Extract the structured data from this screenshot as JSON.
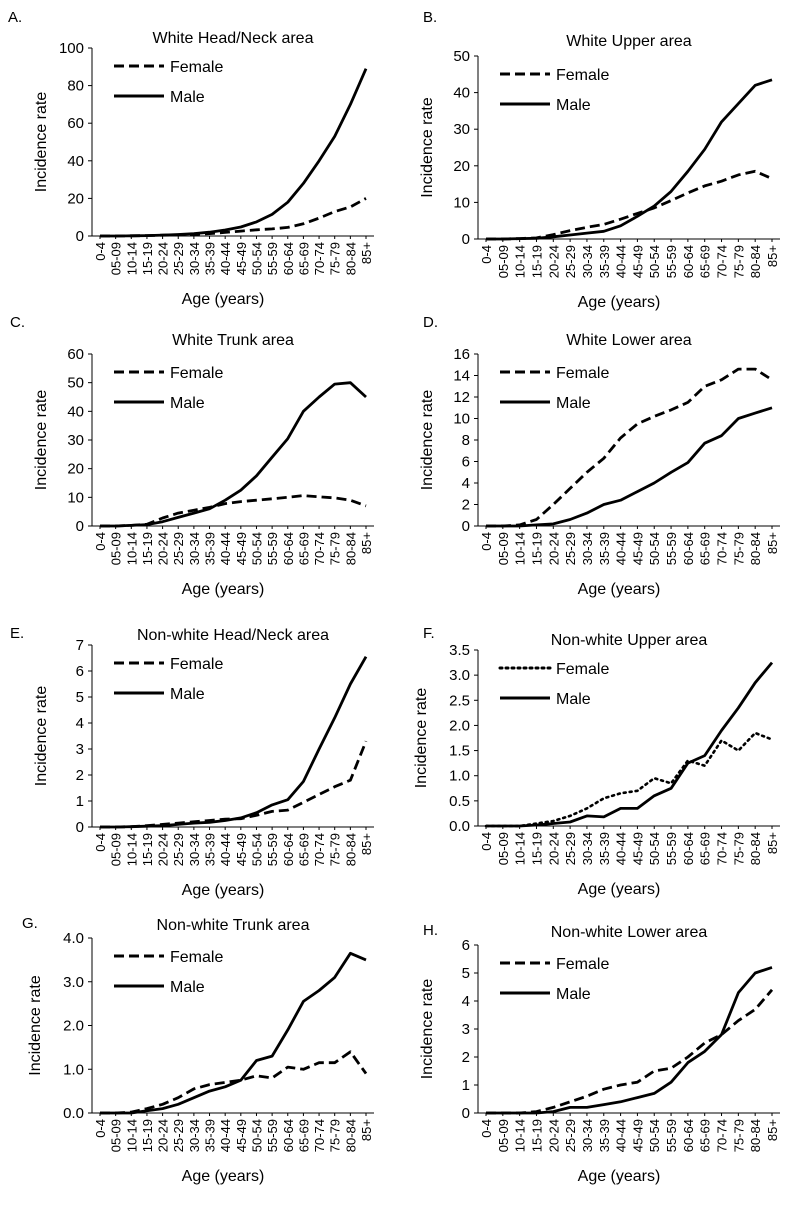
{
  "age_groups": [
    "0-4",
    "05-09",
    "10-14",
    "15-19",
    "20-24",
    "25-29",
    "30-34",
    "35-39",
    "40-44",
    "45-49",
    "50-54",
    "55-59",
    "60-64",
    "65-69",
    "70-74",
    "75-79",
    "80-84",
    "85+"
  ],
  "colors": {
    "line": "#000000",
    "background": "#ffffff"
  },
  "chart_data": [
    {
      "panel": "A.",
      "type": "line",
      "title": "White Head/Neck area",
      "xlabel": "Age (years)",
      "ylabel": "Incidence rate",
      "ylim": [
        0,
        100
      ],
      "yticks": [
        "0",
        "20",
        "40",
        "60",
        "80",
        "100"
      ],
      "legend_placement": "top-left",
      "series": [
        {
          "name": "Female",
          "style": "dashed",
          "values": [
            0,
            0,
            0.1,
            0.2,
            0.4,
            0.6,
            0.9,
            1.3,
            1.9,
            2.6,
            3.3,
            3.8,
            4.6,
            6.5,
            9.5,
            13,
            15.5,
            20
          ]
        },
        {
          "name": "Male",
          "style": "solid",
          "values": [
            0,
            0,
            0.1,
            0.2,
            0.5,
            0.8,
            1.3,
            2,
            3.2,
            4.8,
            7.5,
            11.5,
            18,
            28,
            40,
            53,
            70,
            89
          ]
        }
      ]
    },
    {
      "panel": "B.",
      "type": "line",
      "title": "White Upper area",
      "xlabel": "Age (years)",
      "ylabel": "Incidence rate",
      "ylim": [
        0,
        50
      ],
      "yticks": [
        "0",
        "10",
        "20",
        "30",
        "40",
        "50"
      ],
      "legend_placement": "top-left",
      "series": [
        {
          "name": "Female",
          "style": "dashed",
          "values": [
            0,
            0,
            0.1,
            0.3,
            1.2,
            2.3,
            3.2,
            4,
            5.4,
            7,
            8.5,
            10.5,
            12.6,
            14.5,
            15.8,
            17.5,
            18.5,
            16.5
          ]
        },
        {
          "name": "Male",
          "style": "solid",
          "values": [
            0,
            0,
            0.1,
            0.2,
            0.6,
            1.1,
            1.6,
            2.1,
            3.6,
            6.2,
            9,
            13,
            18.5,
            24.5,
            32,
            37,
            42,
            43.5
          ]
        }
      ]
    },
    {
      "panel": "C.",
      "type": "line",
      "title": "White Trunk area",
      "xlabel": "Age (years)",
      "ylabel": "Incidence rate",
      "ylim": [
        0,
        60
      ],
      "yticks": [
        "0",
        "10",
        "20",
        "30",
        "40",
        "50",
        "60"
      ],
      "legend_placement": "top-left",
      "series": [
        {
          "name": "Female",
          "style": "dashed",
          "values": [
            0,
            0,
            0.2,
            0.6,
            2.8,
            4.5,
            5.5,
            6.5,
            7.8,
            8.5,
            9,
            9.5,
            10,
            10.6,
            10.2,
            9.8,
            9,
            7
          ]
        },
        {
          "name": "Male",
          "style": "solid",
          "values": [
            0,
            0,
            0.2,
            0.5,
            1.5,
            3,
            4.5,
            6,
            9,
            12.5,
            17.5,
            24,
            30.5,
            40,
            45,
            49.5,
            50,
            45
          ]
        }
      ]
    },
    {
      "panel": "D.",
      "type": "line",
      "title": "White Lower area",
      "xlabel": "Age (years)",
      "ylabel": "Incidence rate",
      "ylim": [
        0,
        16
      ],
      "yticks": [
        "0",
        "2",
        "4",
        "6",
        "8",
        "10",
        "12",
        "14",
        "16"
      ],
      "legend_placement": "top-left",
      "series": [
        {
          "name": "Female",
          "style": "dashed",
          "values": [
            0,
            0,
            0.1,
            0.6,
            2,
            3.5,
            5,
            6.3,
            8.2,
            9.5,
            10.2,
            10.8,
            11.5,
            13,
            13.6,
            14.6,
            14.6,
            13.6
          ]
        },
        {
          "name": "Male",
          "style": "solid",
          "values": [
            0,
            0,
            0,
            0.1,
            0.2,
            0.6,
            1.2,
            2,
            2.4,
            3.2,
            4,
            5,
            5.9,
            7.7,
            8.4,
            10,
            10.5,
            11
          ]
        }
      ]
    },
    {
      "panel": "E.",
      "type": "line",
      "title": "Non-white Head/Neck area",
      "xlabel": "Age (years)",
      "ylabel": "Incidence rate",
      "ylim": [
        0,
        7
      ],
      "yticks": [
        "0",
        "1",
        "2",
        "3",
        "4",
        "5",
        "6",
        "7"
      ],
      "legend_placement": "top-left",
      "series": [
        {
          "name": "Female",
          "style": "dashed",
          "values": [
            0,
            0,
            0.01,
            0.05,
            0.1,
            0.15,
            0.2,
            0.25,
            0.3,
            0.32,
            0.45,
            0.6,
            0.65,
            0.95,
            1.25,
            1.55,
            1.8,
            3.3
          ]
        },
        {
          "name": "Male",
          "style": "solid",
          "values": [
            0,
            0,
            0.01,
            0.03,
            0.05,
            0.1,
            0.15,
            0.18,
            0.25,
            0.35,
            0.55,
            0.85,
            1.05,
            1.75,
            3,
            4.2,
            5.5,
            6.55
          ]
        }
      ]
    },
    {
      "panel": "F.",
      "type": "line",
      "title": "Non-white Upper area",
      "xlabel": "Age (years)",
      "ylabel": "Incidence rate",
      "ylim": [
        0,
        3.5
      ],
      "yticks": [
        "0.0",
        "0.5",
        "1.0",
        "1.5",
        "2.0",
        "2.5",
        "3.0",
        "3.5"
      ],
      "legend_placement": "top-left",
      "series": [
        {
          "name": "Female",
          "style": "dotted",
          "values": [
            0,
            0,
            0,
            0.05,
            0.1,
            0.2,
            0.35,
            0.55,
            0.65,
            0.7,
            0.95,
            0.85,
            1.3,
            1.2,
            1.7,
            1.5,
            1.85,
            1.72
          ]
        },
        {
          "name": "Male",
          "style": "solid",
          "values": [
            0,
            0,
            0,
            0.02,
            0.05,
            0.08,
            0.2,
            0.18,
            0.35,
            0.35,
            0.6,
            0.75,
            1.25,
            1.4,
            1.9,
            2.35,
            2.85,
            3.25
          ]
        }
      ]
    },
    {
      "panel": "G.",
      "type": "line",
      "title": "Non-white Trunk area",
      "xlabel": "Age (years)",
      "ylabel": "Incidence rate",
      "ylim": [
        0,
        4
      ],
      "yticks": [
        "0.0",
        "1.0",
        "2.0",
        "3.0",
        "4.0"
      ],
      "legend_placement": "top-left",
      "series": [
        {
          "name": "Female",
          "style": "dashed",
          "values": [
            0,
            0,
            0.02,
            0.1,
            0.2,
            0.35,
            0.55,
            0.65,
            0.7,
            0.75,
            0.85,
            0.8,
            1.05,
            1,
            1.15,
            1.15,
            1.4,
            0.9
          ]
        },
        {
          "name": "Male",
          "style": "solid",
          "values": [
            0,
            0,
            0,
            0.05,
            0.1,
            0.2,
            0.35,
            0.5,
            0.6,
            0.75,
            1.2,
            1.3,
            1.9,
            2.55,
            2.8,
            3.1,
            3.65,
            3.5
          ]
        }
      ]
    },
    {
      "panel": "H.",
      "type": "line",
      "title": "Non-white Lower area",
      "xlabel": "Age (years)",
      "ylabel": "Incidence rate",
      "ylim": [
        0,
        6
      ],
      "yticks": [
        "0",
        "1",
        "2",
        "3",
        "4",
        "5",
        "6"
      ],
      "legend_placement": "top-left",
      "series": [
        {
          "name": "Female",
          "style": "dashed",
          "values": [
            0,
            0,
            0,
            0.05,
            0.2,
            0.4,
            0.6,
            0.85,
            1,
            1.1,
            1.5,
            1.6,
            2,
            2.5,
            2.8,
            3.3,
            3.7,
            4.4
          ]
        },
        {
          "name": "Male",
          "style": "solid",
          "values": [
            0,
            0,
            0,
            0,
            0.05,
            0.2,
            0.2,
            0.3,
            0.4,
            0.55,
            0.7,
            1.1,
            1.8,
            2.2,
            2.8,
            4.3,
            5,
            5.2
          ]
        }
      ]
    }
  ]
}
